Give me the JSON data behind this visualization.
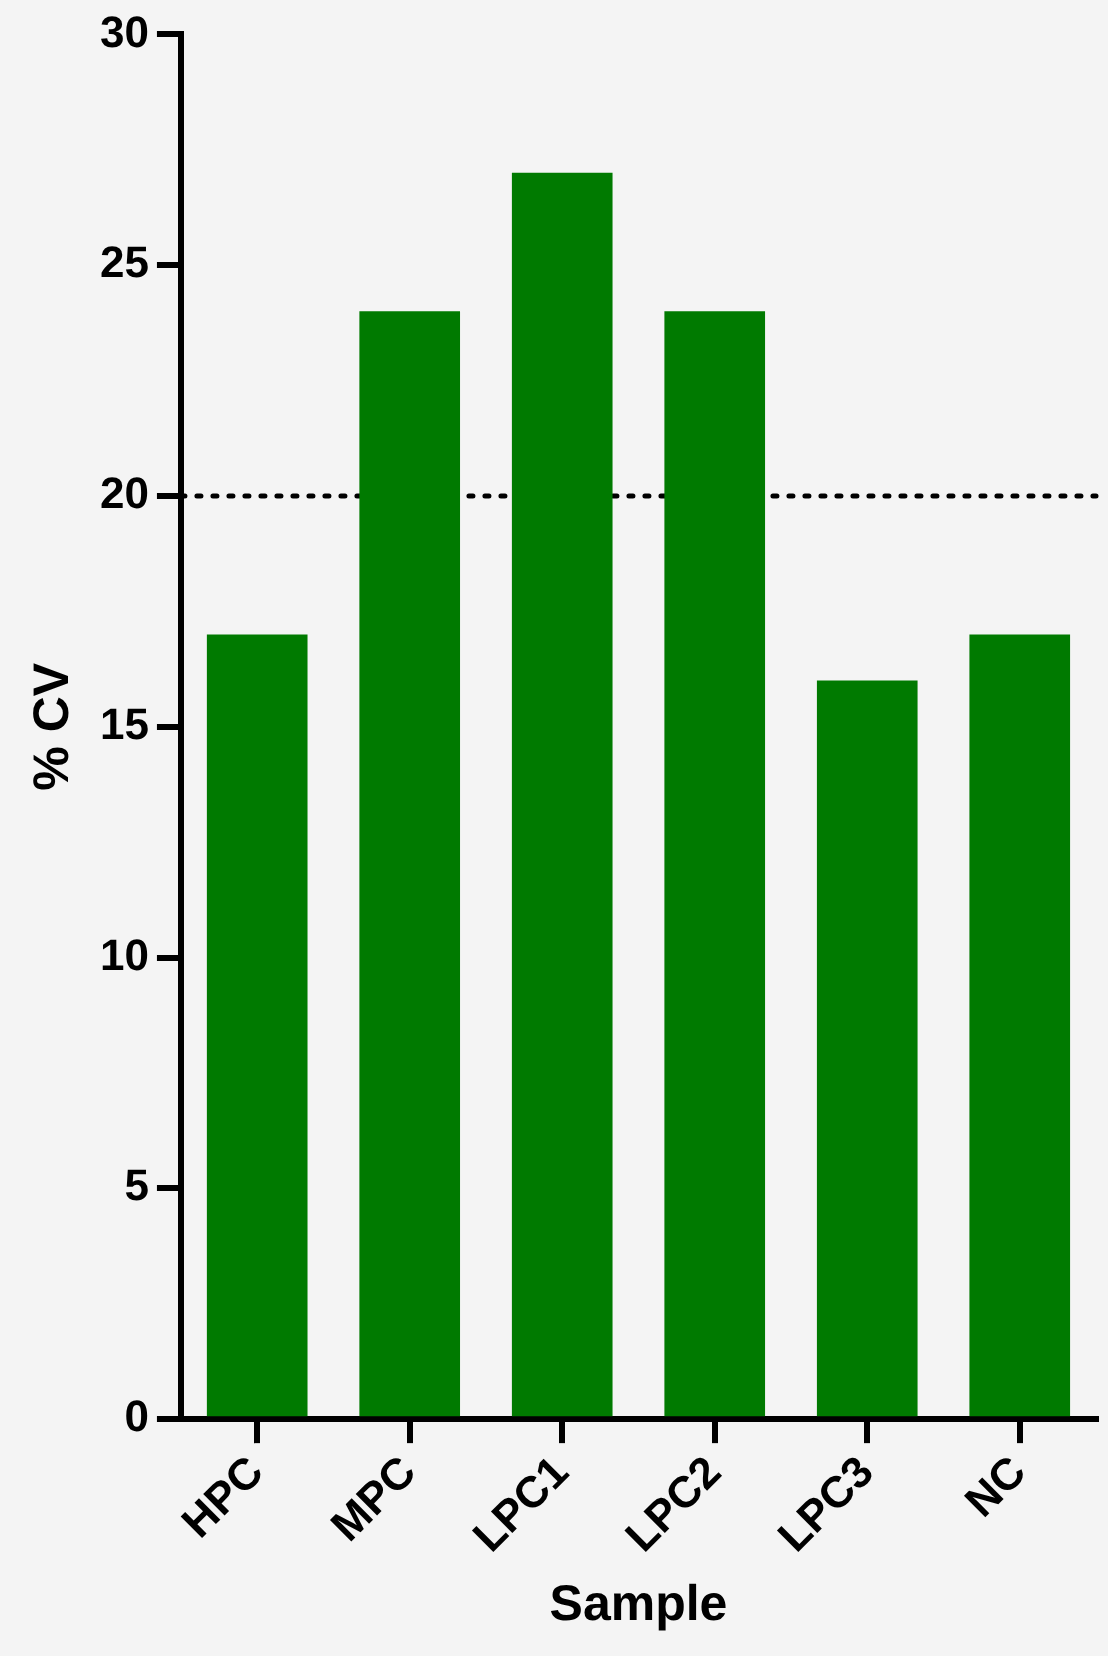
{
  "chart_data": {
    "type": "bar",
    "xlabel": "Sample",
    "ylabel": "% CV",
    "categories": [
      "HPC",
      "MPC",
      "LPC1",
      "LPC2",
      "LPC3",
      "NC"
    ],
    "values": [
      17,
      24,
      27,
      24,
      16,
      17
    ],
    "color": "#007a00",
    "ylim": [
      0,
      30
    ],
    "yticks": [
      0,
      5,
      10,
      15,
      20,
      25,
      30
    ],
    "grid": false,
    "legend": false,
    "ref_lines": [
      {
        "axis": "y",
        "value": 20,
        "color": "#000000",
        "line_style": "dotted"
      }
    ]
  }
}
